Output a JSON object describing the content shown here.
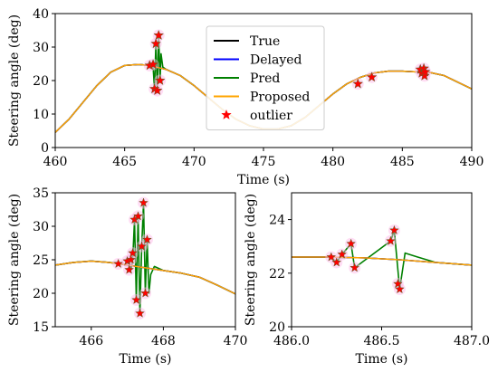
{
  "chart_data": [
    {
      "id": "top",
      "type": "line",
      "xlabel": "Time (s)",
      "ylabel": "Steering angle (deg)",
      "xlim": [
        460,
        490
      ],
      "ylim": [
        0,
        40
      ],
      "xticks": [
        460,
        465,
        470,
        475,
        480,
        485,
        490
      ],
      "yticks": [
        0,
        10,
        20,
        30,
        40
      ],
      "xtick_labels": [
        "460",
        "465",
        "470",
        "475",
        "480",
        "485",
        "490"
      ],
      "ytick_labels": [
        "0",
        "10",
        "20",
        "30",
        "40"
      ],
      "grid": false,
      "legend": {
        "placement": "top-center",
        "entries": [
          {
            "label": "True",
            "color": "#000000",
            "kind": "line"
          },
          {
            "label": "Delayed",
            "color": "#0000ff",
            "kind": "line"
          },
          {
            "label": "Pred",
            "color": "#008000",
            "kind": "line"
          },
          {
            "label": "Proposed",
            "color": "#ffa500",
            "kind": "line"
          },
          {
            "label": "outlier",
            "color": "#ff0000",
            "kind": "star"
          }
        ]
      },
      "series": [
        {
          "name": "True",
          "color": "#000000",
          "x": [
            460,
            461,
            462,
            463,
            464,
            465,
            466,
            466.8,
            467.5,
            468,
            469,
            470,
            471,
            472,
            473,
            474,
            475,
            476,
            477,
            478,
            479,
            480,
            481,
            482,
            483,
            484,
            485,
            486,
            487,
            488,
            489,
            490
          ],
          "y": [
            4.5,
            8.5,
            13.5,
            18.5,
            22.5,
            24.5,
            24.8,
            24.5,
            23.8,
            23.3,
            21.5,
            18.5,
            15,
            11.5,
            8.5,
            6.5,
            5.5,
            5.5,
            6.5,
            9,
            12.5,
            16,
            19,
            21,
            22.3,
            22.8,
            22.8,
            22.6,
            22.4,
            21.5,
            19.5,
            17.5
          ]
        },
        {
          "name": "Delayed",
          "color": "#0000ff",
          "x": [
            460,
            461,
            462,
            463,
            464,
            465,
            466,
            466.8,
            467.5,
            468,
            469,
            470,
            471,
            472,
            473,
            474,
            475,
            476,
            477,
            478,
            479,
            480,
            481,
            482,
            483,
            484,
            485,
            486,
            487,
            488,
            489,
            490
          ],
          "y": [
            4.5,
            8.5,
            13.5,
            18.5,
            22.5,
            24.5,
            24.8,
            24.5,
            23.8,
            23.3,
            21.5,
            18.5,
            15,
            11.5,
            8.5,
            6.5,
            5.5,
            5.5,
            6.5,
            9,
            12.5,
            16,
            19,
            21,
            22.3,
            22.8,
            22.8,
            22.6,
            22.4,
            21.5,
            19.5,
            17.5
          ]
        },
        {
          "name": "Pred",
          "color": "#008000",
          "x": [
            460,
            461,
            462,
            463,
            464,
            465,
            466,
            466.8,
            467.05,
            467.15,
            467.25,
            467.35,
            467.45,
            467.55,
            467.62,
            467.75,
            468,
            469,
            470,
            471,
            472,
            473,
            474,
            475,
            476,
            477,
            478,
            479,
            480,
            481,
            482,
            483,
            484,
            485,
            486,
            486.3,
            486.55,
            486.75,
            487,
            488,
            489,
            490
          ],
          "y": [
            4.5,
            8.5,
            13.5,
            18.5,
            22.5,
            24.5,
            24.8,
            24.5,
            24,
            17.5,
            31,
            17,
            33.5,
            20,
            28,
            24,
            23.3,
            21.5,
            18.5,
            15,
            11.5,
            8.5,
            6.5,
            5.5,
            5.5,
            6.5,
            9,
            12.5,
            16,
            19,
            21,
            22.3,
            22.8,
            22.8,
            22.6,
            23.1,
            21.4,
            22.7,
            22.4,
            21.5,
            19.5,
            17.5
          ]
        },
        {
          "name": "Proposed",
          "color": "#ffa500",
          "x": [
            460,
            461,
            462,
            463,
            464,
            465,
            466,
            466.8,
            467.5,
            468,
            469,
            470,
            471,
            472,
            473,
            474,
            475,
            476,
            477,
            478,
            479,
            480,
            481,
            482,
            483,
            484,
            485,
            486,
            487,
            488,
            489,
            490
          ],
          "y": [
            4.5,
            8.5,
            13.5,
            18.5,
            22.5,
            24.5,
            24.8,
            24.5,
            23.8,
            23.3,
            21.5,
            18.5,
            15,
            11.5,
            8.5,
            6.5,
            5.5,
            5.5,
            6.5,
            9,
            12.5,
            16,
            19,
            21,
            22.3,
            22.8,
            22.8,
            22.6,
            22.4,
            21.5,
            19.5,
            17.5
          ]
        }
      ],
      "outliers": {
        "name": "outlier",
        "color": "#ff0000",
        "x": [
          466.8,
          467.05,
          467.15,
          467.25,
          467.35,
          467.45,
          467.55,
          481.8,
          482.8,
          486.3,
          486.4,
          486.55,
          486.6,
          486.65
        ],
        "y": [
          24.5,
          24.8,
          17.5,
          31,
          17,
          33.5,
          20,
          19,
          21,
          23.3,
          22.2,
          23.6,
          21.4,
          22.6
        ]
      }
    },
    {
      "id": "bottom-left",
      "type": "line",
      "xlabel": "Time (s)",
      "ylabel": "Steering angle (deg)",
      "xlim": [
        465,
        470
      ],
      "ylim": [
        15,
        35
      ],
      "xticks": [
        466,
        468,
        470
      ],
      "yticks": [
        15,
        20,
        25,
        30,
        35
      ],
      "xtick_labels": [
        "466",
        "468",
        "470"
      ],
      "ytick_labels": [
        "15",
        "20",
        "25",
        "30",
        "35"
      ],
      "grid": false,
      "series": [
        {
          "name": "True",
          "color": "#000000",
          "x": [
            465,
            465.5,
            466,
            466.5,
            467,
            467.5,
            468,
            468.5,
            469,
            469.5,
            470
          ],
          "y": [
            24.2,
            24.6,
            24.8,
            24.6,
            24.2,
            23.8,
            23.4,
            23,
            22.4,
            21.2,
            19.9
          ]
        },
        {
          "name": "Delayed",
          "color": "#0000ff",
          "x": [
            465,
            465.5,
            466,
            466.5,
            467,
            467.5,
            468,
            468.5,
            469,
            469.5,
            470
          ],
          "y": [
            24.2,
            24.6,
            24.8,
            24.6,
            24.2,
            23.8,
            23.4,
            23,
            22.4,
            21.2,
            19.9
          ]
        },
        {
          "name": "Pred",
          "color": "#008000",
          "x": [
            465,
            465.5,
            466,
            466.5,
            466.8,
            467.0,
            467.05,
            467.1,
            467.15,
            467.2,
            467.25,
            467.3,
            467.35,
            467.4,
            467.45,
            467.5,
            467.55,
            467.6,
            467.65,
            467.75,
            468,
            468.5,
            469,
            469.5,
            470
          ],
          "y": [
            24.2,
            24.6,
            24.8,
            24.6,
            24.4,
            24.2,
            24.8,
            23.5,
            25,
            31,
            19,
            31.5,
            17,
            27,
            33.5,
            20,
            28,
            20,
            22.8,
            24,
            23.4,
            23,
            22.4,
            21.2,
            19.9
          ]
        },
        {
          "name": "Proposed",
          "color": "#ffa500",
          "x": [
            465,
            465.5,
            466,
            466.5,
            467,
            467.5,
            468,
            468.5,
            469,
            469.5,
            470
          ],
          "y": [
            24.2,
            24.6,
            24.8,
            24.6,
            24.2,
            23.8,
            23.4,
            23,
            22.4,
            21.2,
            19.9
          ]
        }
      ],
      "outliers": {
        "name": "outlier",
        "color": "#ff0000",
        "x": [
          466.75,
          467.0,
          467.05,
          467.1,
          467.15,
          467.2,
          467.25,
          467.3,
          467.35,
          467.4,
          467.45,
          467.5,
          467.55
        ],
        "y": [
          24.4,
          24.8,
          23.5,
          25,
          26,
          31,
          19,
          31.5,
          17,
          27,
          33.5,
          20,
          28
        ]
      }
    },
    {
      "id": "bottom-right",
      "type": "line",
      "xlabel": "Time (s)",
      "ylabel": "Steering angle (deg)",
      "xlim": [
        486,
        487
      ],
      "ylim": [
        20,
        25
      ],
      "xticks": [
        486.0,
        486.5,
        487.0
      ],
      "yticks": [
        20,
        22,
        24
      ],
      "xtick_labels": [
        "486.0",
        "486.5",
        "487.0"
      ],
      "ytick_labels": [
        "20",
        "22",
        "24"
      ],
      "grid": false,
      "series": [
        {
          "name": "True",
          "color": "#000000",
          "x": [
            486.0,
            486.2,
            486.4,
            486.6,
            486.8,
            487.0
          ],
          "y": [
            22.6,
            22.6,
            22.57,
            22.5,
            22.4,
            22.3
          ]
        },
        {
          "name": "Delayed",
          "color": "#0000ff",
          "x": [
            486.0,
            486.2,
            486.4,
            486.6,
            486.8,
            487.0
          ],
          "y": [
            22.6,
            22.6,
            22.57,
            22.5,
            22.4,
            22.3
          ]
        },
        {
          "name": "Pred",
          "color": "#008000",
          "x": [
            486.0,
            486.22,
            486.25,
            486.28,
            486.33,
            486.35,
            486.55,
            486.57,
            486.6,
            486.63,
            486.7,
            486.75,
            486.8,
            487.0
          ],
          "y": [
            22.6,
            22.6,
            22.4,
            22.7,
            23.1,
            22.2,
            23.2,
            23.6,
            21.4,
            22.75,
            22.6,
            22.5,
            22.4,
            22.3
          ]
        },
        {
          "name": "Proposed",
          "color": "#ffa500",
          "x": [
            486.0,
            486.2,
            486.4,
            486.6,
            486.8,
            487.0
          ],
          "y": [
            22.6,
            22.6,
            22.57,
            22.5,
            22.4,
            22.3
          ]
        }
      ],
      "outliers": {
        "name": "outlier",
        "color": "#ff0000",
        "x": [
          486.22,
          486.25,
          486.28,
          486.33,
          486.35,
          486.55,
          486.57,
          486.59,
          486.6
        ],
        "y": [
          22.6,
          22.4,
          22.7,
          23.1,
          22.2,
          23.2,
          23.6,
          21.6,
          21.4
        ]
      }
    }
  ]
}
